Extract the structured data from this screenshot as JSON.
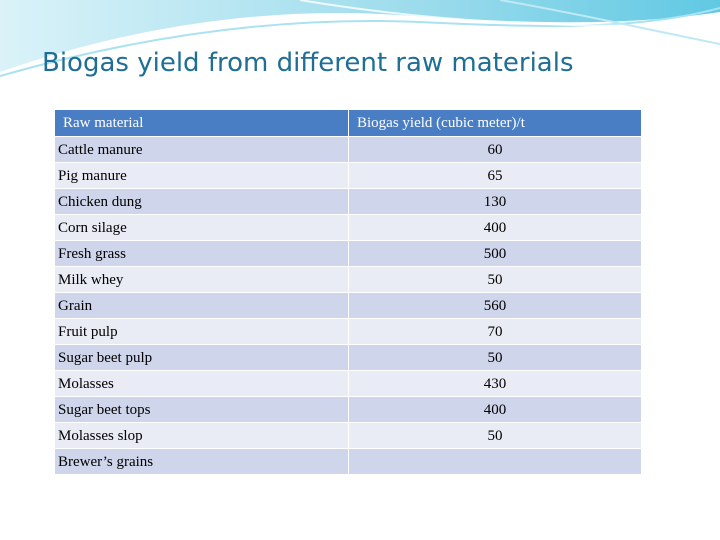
{
  "slide": {
    "title": "Biogas yield from different raw materials"
  },
  "table": {
    "headers": [
      "Raw material",
      "Biogas yield (cubic meter)/t"
    ],
    "rows": [
      [
        "Cattle manure",
        "60"
      ],
      [
        "Pig manure",
        "65"
      ],
      [
        "Chicken dung",
        "130"
      ],
      [
        "Corn silage",
        "400"
      ],
      [
        "Fresh grass",
        "500"
      ],
      [
        "Milk whey",
        "50"
      ],
      [
        "Grain",
        "560"
      ],
      [
        "Fruit pulp",
        "70"
      ],
      [
        "Sugar beet pulp",
        "50"
      ],
      [
        "Molasses",
        "430"
      ],
      [
        "Sugar beet tops",
        "400"
      ],
      [
        "Molasses slop",
        "50"
      ],
      [
        "Brewer’s grains",
        ""
      ]
    ]
  },
  "colors": {
    "title": "#1f6e96",
    "header_bg": "#4a7ec4",
    "row_dark": "#cfd5ea",
    "row_light": "#e9ebf5",
    "wave": "#7ed3e8"
  }
}
